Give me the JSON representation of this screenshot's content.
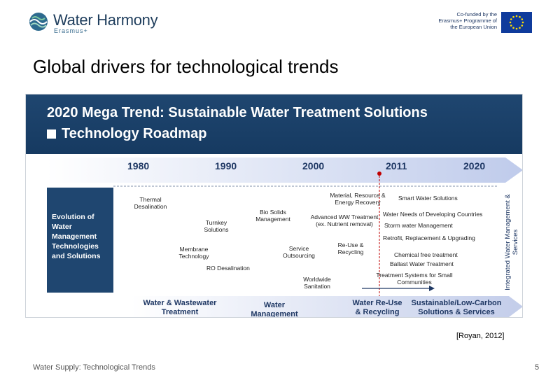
{
  "header": {
    "logo_name": "Water Harmony",
    "logo_sub": "Erasmus+",
    "eu_text": "Co-funded by the Erasmus+ Programme of the European Union"
  },
  "slide": {
    "title": "Global drivers for technological trends",
    "citation": "[Royan, 2012]",
    "footer": "Water Supply:  Technological Trends",
    "page": "5"
  },
  "figure": {
    "title1": "2020 Mega Trend: Sustainable Water Treatment Solutions",
    "title2": "Technology Roadmap",
    "years": [
      "1980",
      "1990",
      "2000",
      "2011",
      "2020"
    ],
    "left_label": "Evolution of Water Management Technologies and Solutions",
    "vertical_label": "Integrated Water Management & Services",
    "items": [
      "Thermal Desalination",
      "Turnkey Solutions",
      "Membrane Technology",
      "RO Desalination",
      "Bio Solids Management",
      "Service Outsourcing",
      "Worldwide Sanitation",
      "Material, Resource & Energy Recovery",
      "Advanced WW Treatment (ex. Nutrient removal)",
      "Re-Use & Recycling",
      "Smart Water Solutions",
      "Water Needs of Developing Countries",
      "Storm water Management",
      "Retrofit, Replacement & Upgrading",
      "Chemical free treatment",
      "Ballast Water Treatment",
      "Treatment Systems for Small Communities"
    ],
    "phases": [
      "Water & Wastewater Treatment",
      "Water Management",
      "Water Re-Use & Recycling",
      "Sustainable/Low-Carbon Solutions & Services"
    ],
    "colors": {
      "navy": "#1f4670",
      "band": "#c9d3ec",
      "marker": "#c00000"
    }
  }
}
